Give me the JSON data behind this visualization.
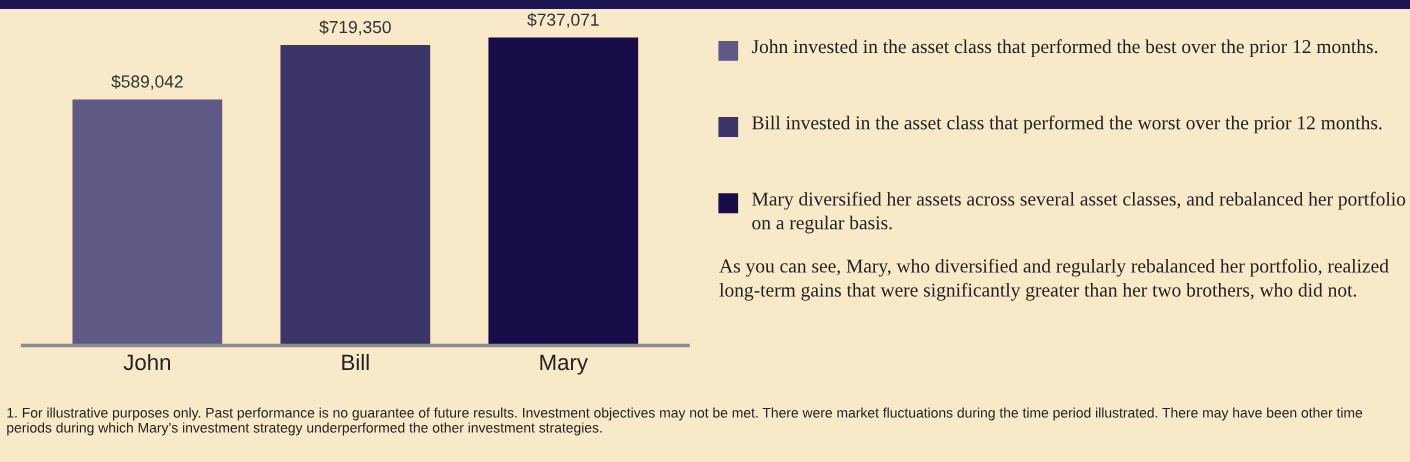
{
  "chart_data": {
    "type": "bar",
    "categories": [
      "John",
      "Bill",
      "Mary"
    ],
    "series": [
      {
        "name": "John invested in the asset class that performed the best over the prior 12 months.",
        "color": "#5f5a85",
        "values": [
          589042,
          null,
          null
        ],
        "value_labels": [
          "$589,042",
          null,
          null
        ]
      },
      {
        "name": "Bill invested in the asset class that performed the worst over the prior 12 months.",
        "color": "#3c3568",
        "values": [
          null,
          719350,
          null
        ],
        "value_labels": [
          null,
          "$719,350",
          null
        ]
      },
      {
        "name": "Mary diversified her assets across several asset classes, and rebalanced her portfolio on a regular basis.",
        "color": "#170c48",
        "values": [
          null,
          null,
          737071
        ],
        "value_labels": [
          null,
          null,
          "$737,071"
        ]
      }
    ],
    "legend": "right",
    "grid": false,
    "annotations": [
      "As you can see, Mary, who diversified and regularly rebalanced her portfolio, realized long-term gains that were significantly greater than her two brothers, who did not.",
      "1. For illustrative purposes only. Past performance is no guarantee of future results. Investment objectives may not be met. There were market fluctuations during the time period illustrated. There may have been other time periods during which Mary’s investment strategy underperformed the other investment strategies."
    ]
  }
}
